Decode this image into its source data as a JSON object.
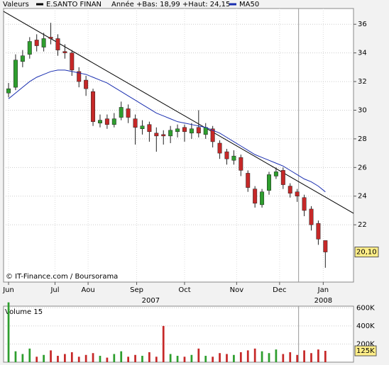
{
  "chart_data": {
    "type": "candlestick",
    "header": {
      "section": "Valeurs",
      "series_name": "E.SANTO FINAN",
      "range_text": "Année +Bas: 18,99 +Haut: 24,15",
      "ma_name": "MA50"
    },
    "credit": "© IT-Finance.com / Boursorama",
    "x": [
      0,
      1,
      2,
      3,
      4,
      5,
      6,
      7,
      8,
      9,
      10,
      11,
      12,
      13,
      14,
      15,
      16,
      17,
      18,
      19,
      20,
      21,
      22,
      23,
      24,
      25,
      26,
      27,
      28,
      29,
      30,
      31,
      32,
      33,
      34,
      35,
      36,
      37,
      38,
      39,
      40,
      41,
      42,
      43,
      44,
      45
    ],
    "xlim": [
      -0.71,
      49.0
    ],
    "xticks": [
      {
        "value": 0,
        "label": "Jun"
      },
      {
        "value": 6.6,
        "label": "Jul"
      },
      {
        "value": 11.3,
        "label": "Aou"
      },
      {
        "value": 18.2,
        "label": "Sep"
      },
      {
        "value": 25.0,
        "label": "Oct"
      },
      {
        "value": 32.4,
        "label": "Nov"
      },
      {
        "value": 38.5,
        "label": "Dec"
      },
      {
        "value": 44.7,
        "label": "Jan"
      }
    ],
    "year_labels": [
      {
        "value": 20.2,
        "label": "2007"
      },
      {
        "value": 44.7,
        "label": "2008"
      }
    ],
    "vline": 41.2,
    "open": [
      31.2,
      31.6,
      33.4,
      33.9,
      34.9,
      34.4,
      35.1,
      35.0,
      34.1,
      34.0,
      32.7,
      32.1,
      31.3,
      29.1,
      29.4,
      29.0,
      29.5,
      30.1,
      29.4,
      28.7,
      29.0,
      28.4,
      28.3,
      28.2,
      28.5,
      28.8,
      28.4,
      28.8,
      28.3,
      28.7,
      27.7,
      27.1,
      26.5,
      26.7,
      25.6,
      24.5,
      23.4,
      24.4,
      25.4,
      25.8,
      24.7,
      24.3,
      23.9,
      23.1,
      22.1,
      20.9
    ],
    "high": [
      31.9,
      33.9,
      34.2,
      35.1,
      35.3,
      35.4,
      36.1,
      35.3,
      34.6,
      34.2,
      33.0,
      32.4,
      31.5,
      29.7,
      29.7,
      29.8,
      30.6,
      30.4,
      29.7,
      29.3,
      29.2,
      28.8,
      28.6,
      28.9,
      29.0,
      29.0,
      29.1,
      30.0,
      29.1,
      28.9,
      27.9,
      27.3,
      27.2,
      26.9,
      25.8,
      24.7,
      24.5,
      25.7,
      26.0,
      26.0,
      24.9,
      24.5,
      24.1,
      23.3,
      22.3,
      20.9
    ],
    "low": [
      30.9,
      31.4,
      33.0,
      33.6,
      34.1,
      34.1,
      34.6,
      33.8,
      33.6,
      32.4,
      31.6,
      31.0,
      28.9,
      28.8,
      28.7,
      28.8,
      29.3,
      29.1,
      27.6,
      28.3,
      27.8,
      27.1,
      27.6,
      27.7,
      28.1,
      27.8,
      28.0,
      28.1,
      28.0,
      27.4,
      26.6,
      26.2,
      26.2,
      25.4,
      24.3,
      23.2,
      23.2,
      24.1,
      25.2,
      24.5,
      23.9,
      23.6,
      22.6,
      21.6,
      20.6,
      19.0
    ],
    "close": [
      31.5,
      33.5,
      33.8,
      34.8,
      34.5,
      35,
      35,
      34.2,
      34,
      32.8,
      32,
      31.5,
      29.2,
      29.3,
      29,
      29.4,
      30.2,
      29.5,
      28.8,
      28.9,
      28.5,
      28.2,
      28.2,
      28.6,
      28.7,
      28.5,
      28.7,
      28.4,
      28.8,
      27.8,
      27,
      26.6,
      26.8,
      25.8,
      24.6,
      23.5,
      24.3,
      25.5,
      25.7,
      24.8,
      24.2,
      24,
      23,
      22,
      21,
      20.1
    ],
    "up_color": "#2e9e2e",
    "down_color": "#c62828",
    "ma50": {
      "color": "#1a2fb0",
      "values": [
        30.8,
        31.2,
        31.6,
        32.0,
        32.3,
        32.5,
        32.7,
        32.8,
        32.8,
        32.7,
        32.6,
        32.5,
        32.3,
        32.1,
        31.9,
        31.6,
        31.3,
        31.0,
        30.7,
        30.4,
        30.1,
        29.8,
        29.6,
        29.4,
        29.2,
        29.1,
        29.0,
        28.9,
        28.8,
        28.6,
        28.4,
        28.1,
        27.8,
        27.5,
        27.2,
        26.9,
        26.7,
        26.5,
        26.3,
        26.1,
        25.8,
        25.5,
        25.2,
        25.0,
        24.7,
        24.3
      ]
    },
    "trendline": [
      [
        -0.71,
        36.9
      ],
      [
        49.0,
        22.8
      ]
    ],
    "ylim": [
      18,
      37.1
    ],
    "yticks": [
      22,
      24,
      26,
      28,
      30,
      32,
      34,
      36
    ],
    "grid": true,
    "last_price": {
      "value": 20.1,
      "label": "20,10"
    },
    "volume": {
      "title": "Volume 15",
      "values": [
        660000,
        120000,
        90000,
        150000,
        60000,
        80000,
        130000,
        70000,
        90000,
        110000,
        60000,
        80000,
        100000,
        70000,
        50000,
        90000,
        120000,
        60000,
        80000,
        70000,
        110000,
        60000,
        400000,
        90000,
        70000,
        60000,
        80000,
        150000,
        70000,
        60000,
        100000,
        90000,
        80000,
        110000,
        130000,
        150000,
        120000,
        100000,
        140000,
        90000,
        110000,
        80000,
        130000,
        100000,
        140000,
        125000
      ],
      "ylim": [
        0,
        618000
      ],
      "yticks": [
        {
          "value": 200000,
          "label": "200K"
        },
        {
          "value": 400000,
          "label": "400K"
        },
        {
          "value": 600000,
          "label": "600K"
        }
      ],
      "last": {
        "value": 125000,
        "label": "125K"
      }
    }
  }
}
